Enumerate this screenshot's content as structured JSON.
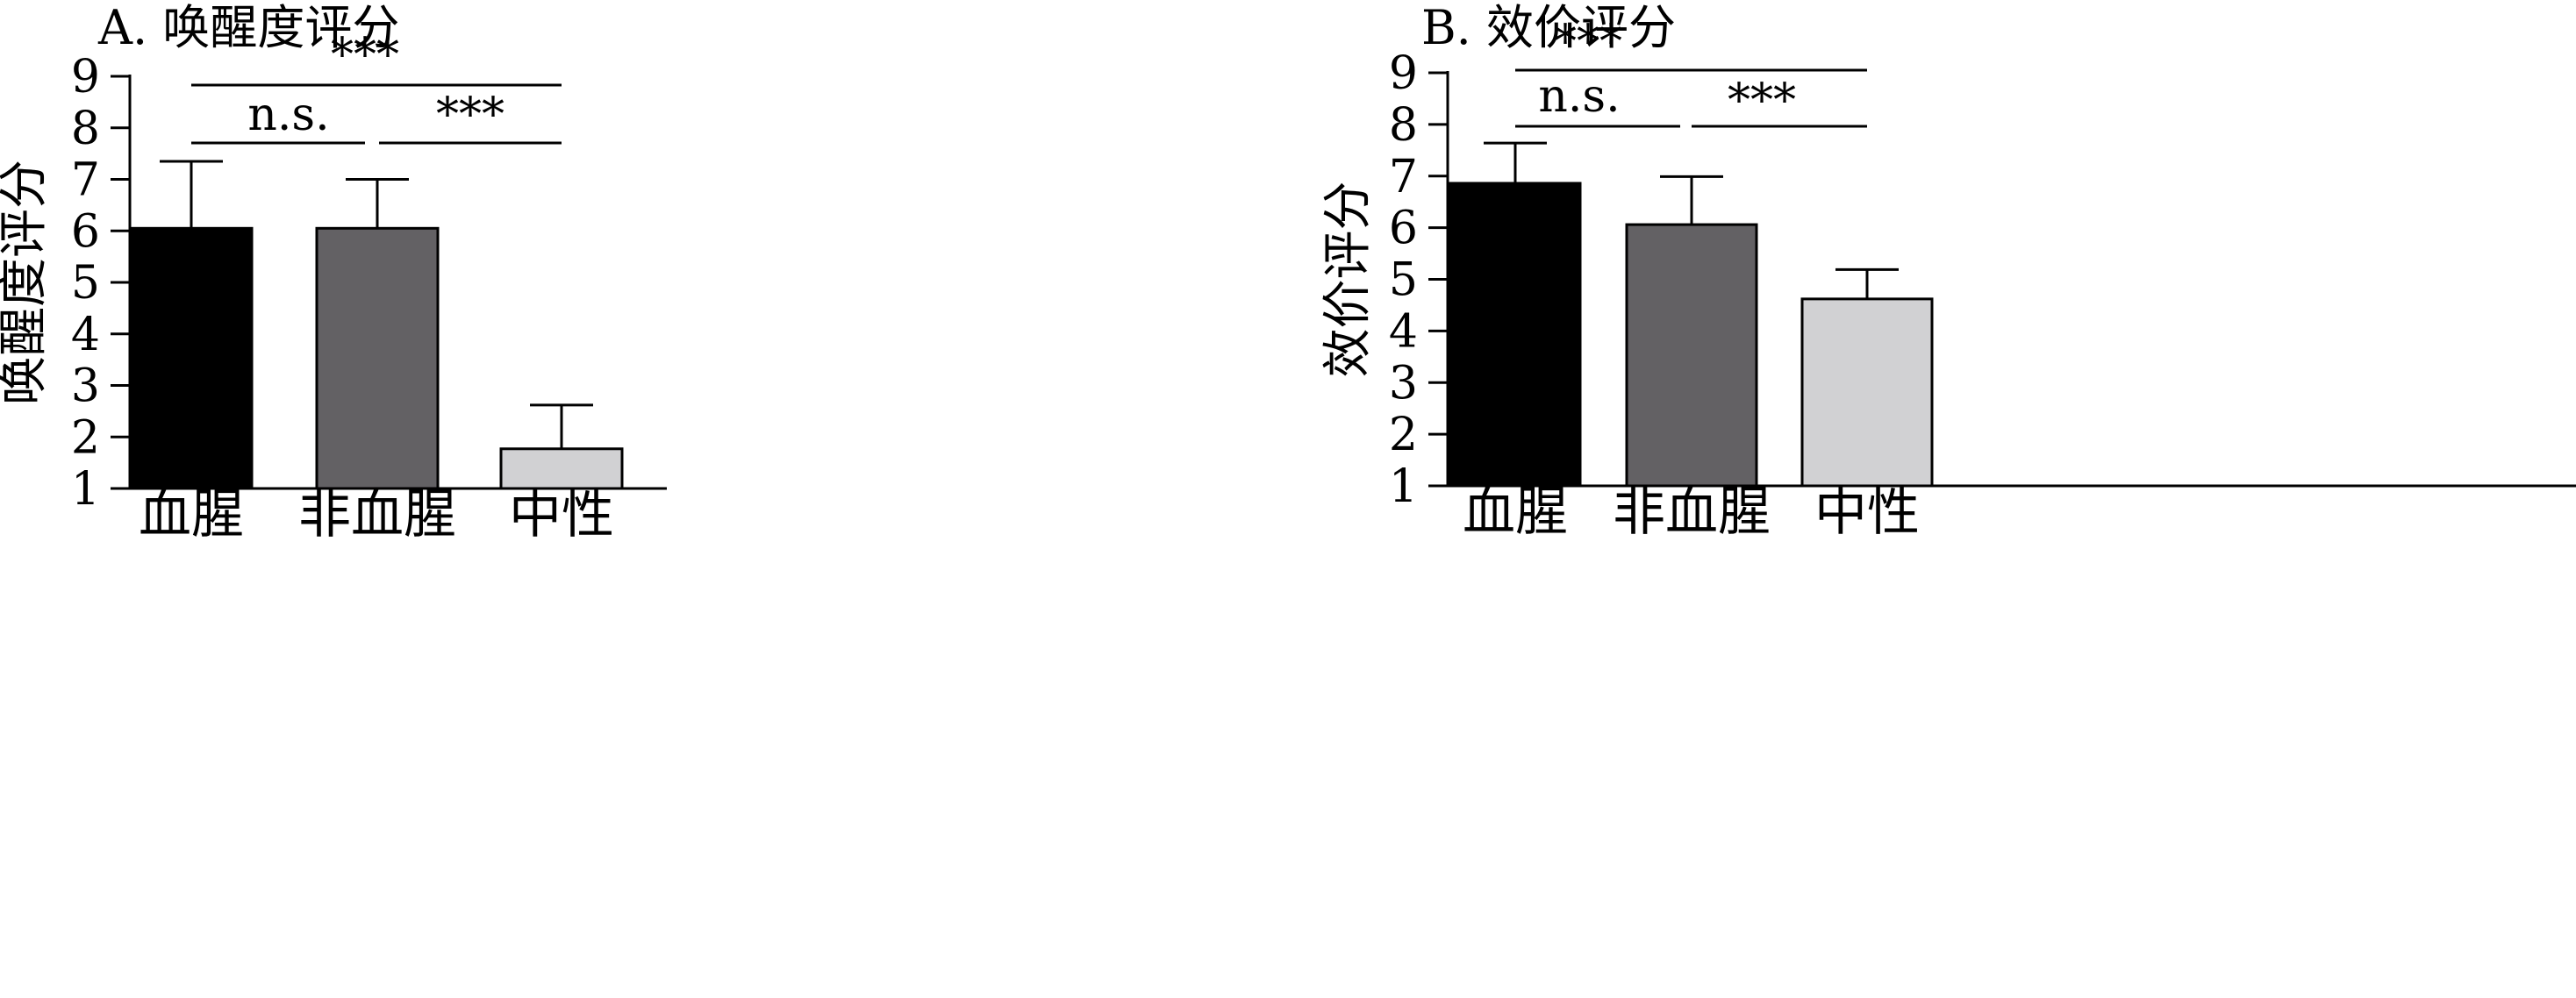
{
  "chart_data": [
    {
      "type": "bar",
      "title": "A. 唤醒度评分",
      "xlabel": "",
      "ylabel": "唤醒度评分",
      "ylim": [
        1,
        9
      ],
      "yticks": [
        1,
        2,
        3,
        4,
        5,
        6,
        7,
        8,
        9
      ],
      "grid": false,
      "categories": [
        "血腥",
        "非血腥",
        "中性"
      ],
      "values": [
        6.05,
        6.05,
        1.77
      ],
      "errors": [
        1.3,
        0.95,
        0.85
      ],
      "bar_colors": [
        "#000000",
        "#636164",
        "#d1d1d3"
      ],
      "significance": [
        {
          "from": 0,
          "to": 1,
          "label": "n.s."
        },
        {
          "from": 1,
          "to": 2,
          "label": "***"
        },
        {
          "from": 0,
          "to": 2,
          "label": "***"
        }
      ]
    },
    {
      "type": "bar",
      "title": "B. 效价评分",
      "xlabel": "",
      "ylabel": "效价评分",
      "ylim": [
        1,
        9
      ],
      "yticks": [
        1,
        2,
        3,
        4,
        5,
        6,
        7,
        8,
        9
      ],
      "grid": false,
      "categories": [
        "血腥",
        "非血腥",
        "中性"
      ],
      "values": [
        6.86,
        6.06,
        4.62
      ],
      "errors": [
        0.78,
        0.93,
        0.57
      ],
      "bar_colors": [
        "#000000",
        "#636164",
        "#d1d1d3"
      ],
      "significance": [
        {
          "from": 0,
          "to": 1,
          "label": "n.s."
        },
        {
          "from": 1,
          "to": 2,
          "label": "***"
        },
        {
          "from": 0,
          "to": 2,
          "label": "***"
        }
      ]
    }
  ]
}
